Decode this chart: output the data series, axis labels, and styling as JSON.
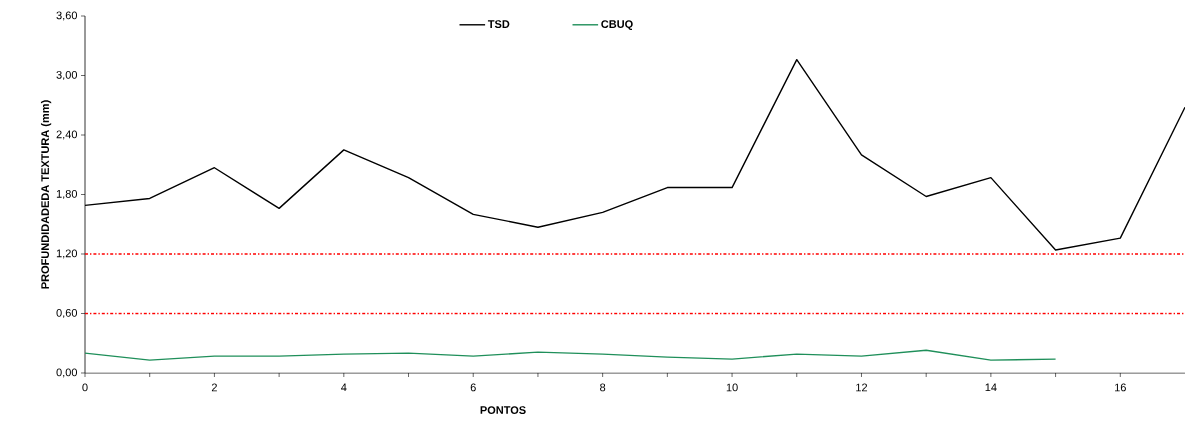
{
  "chart_data": {
    "type": "line",
    "xlabel": "PONTOS",
    "ylabel": "PROFUNDIDADEDA TEXTURA (mm)",
    "xlim": [
      0,
      17
    ],
    "ylim": [
      0,
      3.6
    ],
    "xticks": [
      0,
      {
        "value": 1,
        "label": null
      },
      2,
      {
        "value": 3,
        "label": null
      },
      4,
      {
        "value": 5,
        "label": null
      },
      6,
      {
        "value": 7,
        "label": null
      },
      8,
      {
        "value": 9,
        "label": null
      },
      10,
      {
        "value": 11,
        "label": null
      },
      12,
      {
        "value": 13,
        "label": null
      },
      14,
      {
        "value": 15,
        "label": null
      },
      16
    ],
    "yticks": [
      {
        "value": 0,
        "label": "0,00"
      },
      {
        "value": 0.6,
        "label": "0,60"
      },
      {
        "value": 1.2,
        "label": "1,20"
      },
      {
        "value": 1.8,
        "label": "1,80"
      },
      {
        "value": 2.4,
        "label": "2,40"
      },
      {
        "value": 3.0,
        "label": "3,00"
      },
      {
        "value": 3.6,
        "label": "3,60"
      }
    ],
    "series": [
      {
        "name": "TSD",
        "color": "#000000",
        "x": [
          0,
          1,
          2,
          3,
          4,
          5,
          6,
          7,
          8,
          9,
          10,
          11,
          12,
          13,
          14,
          15,
          16,
          17
        ],
        "values": [
          1.69,
          1.76,
          2.07,
          1.66,
          2.25,
          1.97,
          1.6,
          1.47,
          1.62,
          1.87,
          1.87,
          3.16,
          2.2,
          1.78,
          1.97,
          1.24,
          1.36,
          2.68
        ]
      },
      {
        "name": "CBUQ",
        "color": "#1f8f5a",
        "x": [
          0,
          1,
          2,
          3,
          4,
          5,
          6,
          7,
          8,
          9,
          10,
          11,
          12,
          13,
          14,
          15
        ],
        "values": [
          0.2,
          0.13,
          0.17,
          0.17,
          0.19,
          0.2,
          0.17,
          0.21,
          0.19,
          0.16,
          0.14,
          0.19,
          0.17,
          0.23,
          0.13,
          0.14
        ]
      }
    ],
    "ref_lines": [
      {
        "axis": "y",
        "value": 1.2,
        "color": "#ff0000",
        "line_style": "dashdot"
      },
      {
        "axis": "y",
        "value": 0.6,
        "color": "#ff0000",
        "line_style": "dashdot"
      }
    ],
    "legend": "top",
    "grid": false,
    "marker": "none",
    "line_style": "solid"
  }
}
